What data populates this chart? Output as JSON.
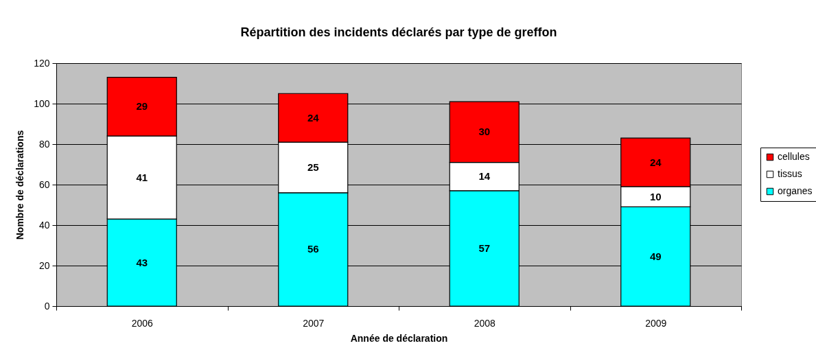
{
  "chart_data": {
    "type": "bar",
    "title": "Répartition des incidents déclarés par type de greffon",
    "xlabel": "Année de déclaration",
    "ylabel": "Nombre de déclarations",
    "categories": [
      "2006",
      "2007",
      "2008",
      "2009"
    ],
    "stacked": true,
    "series": [
      {
        "name": "organes",
        "color": "#00ffff",
        "values": [
          43,
          56,
          57,
          49
        ]
      },
      {
        "name": "tissus",
        "color": "#ffffff",
        "values": [
          41,
          25,
          14,
          10
        ]
      },
      {
        "name": "cellules",
        "color": "#ff0000",
        "values": [
          29,
          24,
          30,
          24
        ]
      }
    ],
    "ylim": [
      0,
      120
    ],
    "yticks": [
      0,
      20,
      40,
      60,
      80,
      100,
      120
    ],
    "grid": "y",
    "legend": "right",
    "data_labels": true
  }
}
